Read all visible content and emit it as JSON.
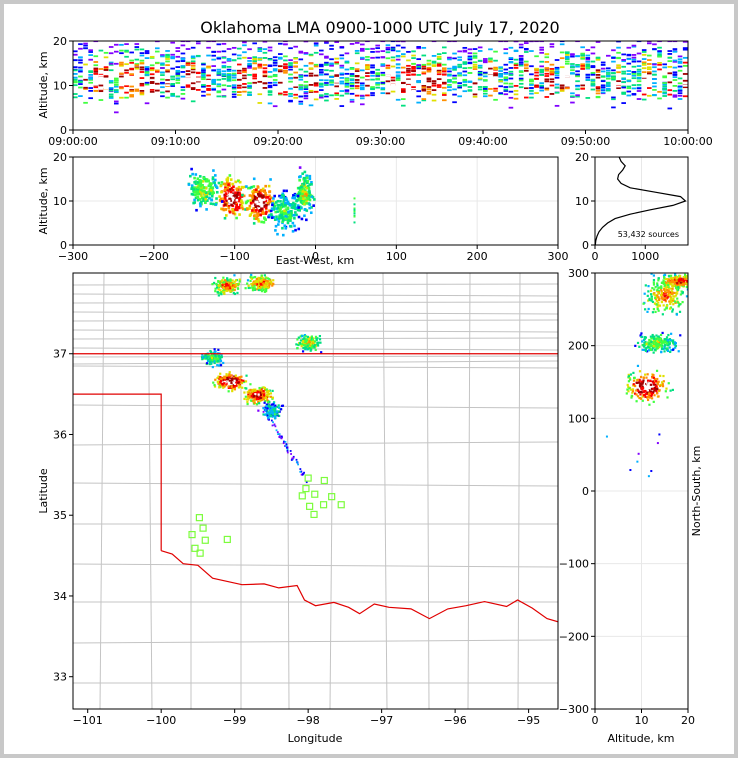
{
  "title": "Oklahoma LMA 0900-1000 UTC July 17, 2020",
  "colors": {
    "state_border": "#e00000",
    "county_lines": "#c4c4c4",
    "stations": "#7cfc3c",
    "density_scale": [
      "#8000ff",
      "#0000ff",
      "#00b0ff",
      "#00e080",
      "#40ff40",
      "#e0e000",
      "#ff9000",
      "#ff0000",
      "#a00000",
      "#ffffff"
    ]
  },
  "chart_data": [
    {
      "id": "time-height",
      "type": "heatmap",
      "xlabel": "",
      "ylabel": "Altitude, km",
      "xlim_minutes": [
        0,
        60
      ],
      "ylim": [
        0,
        20
      ],
      "xticks": [
        "09:00:00",
        "09:10:00",
        "09:20:00",
        "09:30:00",
        "09:40:00",
        "09:50:00",
        "10:00:00"
      ],
      "yticks": [
        "0",
        "10",
        "20"
      ],
      "core_altitude_km": 11
    },
    {
      "id": "ew-height",
      "type": "heatmap",
      "xlabel": "East-West, km",
      "ylabel": "Altitude, km",
      "xlim": [
        -300,
        300
      ],
      "ylim": [
        0,
        20
      ],
      "xticks": [
        "−300",
        "−200",
        "−100",
        "0",
        "100",
        "200",
        "300"
      ],
      "yticks": [
        "0",
        "10",
        "20"
      ]
    },
    {
      "id": "altitude-histogram",
      "type": "line",
      "xlabel": "",
      "ylabel": "",
      "xlim": [
        0,
        1850
      ],
      "ylim": [
        0,
        20
      ],
      "xticks": [
        "0",
        "1000"
      ],
      "yticks": [
        "0",
        "10",
        "20"
      ],
      "altitude_km": [
        0,
        1,
        2,
        3,
        4,
        5,
        6,
        7,
        8,
        9,
        10,
        11,
        12,
        13,
        14,
        15,
        16,
        17,
        18,
        19,
        20
      ],
      "source_counts": [
        5,
        15,
        40,
        80,
        150,
        250,
        400,
        700,
        1100,
        1550,
        1800,
        1700,
        1200,
        700,
        520,
        450,
        470,
        550,
        600,
        520,
        480
      ],
      "annotation": "53,432 sources"
    },
    {
      "id": "plan-view",
      "type": "scatter",
      "xlabel": "Longitude",
      "ylabel": "Latitude",
      "xlim": [
        -101.2,
        -94.6
      ],
      "ylim": [
        32.6,
        38.0
      ],
      "xticks": [
        "−101",
        "−100",
        "−99",
        "−98",
        "−97",
        "−96",
        "−95"
      ],
      "yticks": [
        "33",
        "34",
        "35",
        "36",
        "37"
      ],
      "stations": [
        {
          "lon": -99.48,
          "lat": 34.97
        },
        {
          "lon": -99.43,
          "lat": 34.84
        },
        {
          "lon": -99.58,
          "lat": 34.76
        },
        {
          "lon": -99.4,
          "lat": 34.69
        },
        {
          "lon": -99.54,
          "lat": 34.59
        },
        {
          "lon": -99.47,
          "lat": 34.53
        },
        {
          "lon": -99.1,
          "lat": 34.7
        },
        {
          "lon": -98.0,
          "lat": 35.46
        },
        {
          "lon": -98.03,
          "lat": 35.33
        },
        {
          "lon": -98.08,
          "lat": 35.24
        },
        {
          "lon": -97.91,
          "lat": 35.26
        },
        {
          "lon": -97.78,
          "lat": 35.43
        },
        {
          "lon": -97.68,
          "lat": 35.23
        },
        {
          "lon": -97.98,
          "lat": 35.11
        },
        {
          "lon": -97.79,
          "lat": 35.13
        },
        {
          "lon": -97.55,
          "lat": 35.13
        },
        {
          "lon": -97.92,
          "lat": 35.01
        }
      ],
      "storm_cells": [
        {
          "lon": -99.07,
          "lat": 36.67,
          "intensity": 1.0
        },
        {
          "lon": -98.7,
          "lat": 36.5,
          "intensity": 0.9
        },
        {
          "lon": -99.1,
          "lat": 37.85,
          "intensity": 0.75
        },
        {
          "lon": -98.65,
          "lat": 37.88,
          "intensity": 0.75
        },
        {
          "lon": -98.0,
          "lat": 37.15,
          "intensity": 0.6
        },
        {
          "lon": -99.3,
          "lat": 36.95,
          "intensity": 0.45
        },
        {
          "lon": -98.5,
          "lat": 36.3,
          "intensity": 0.35
        }
      ]
    },
    {
      "id": "ns-height",
      "type": "heatmap",
      "xlabel": "Altitude, km",
      "ylabel": "North-South, km",
      "xlim": [
        0,
        20
      ],
      "ylim": [
        -300,
        300
      ],
      "xticks": [
        "0",
        "10",
        "20"
      ],
      "yticks": [
        "−300",
        "−200",
        "−100",
        "0",
        "100",
        "200",
        "300"
      ]
    }
  ]
}
